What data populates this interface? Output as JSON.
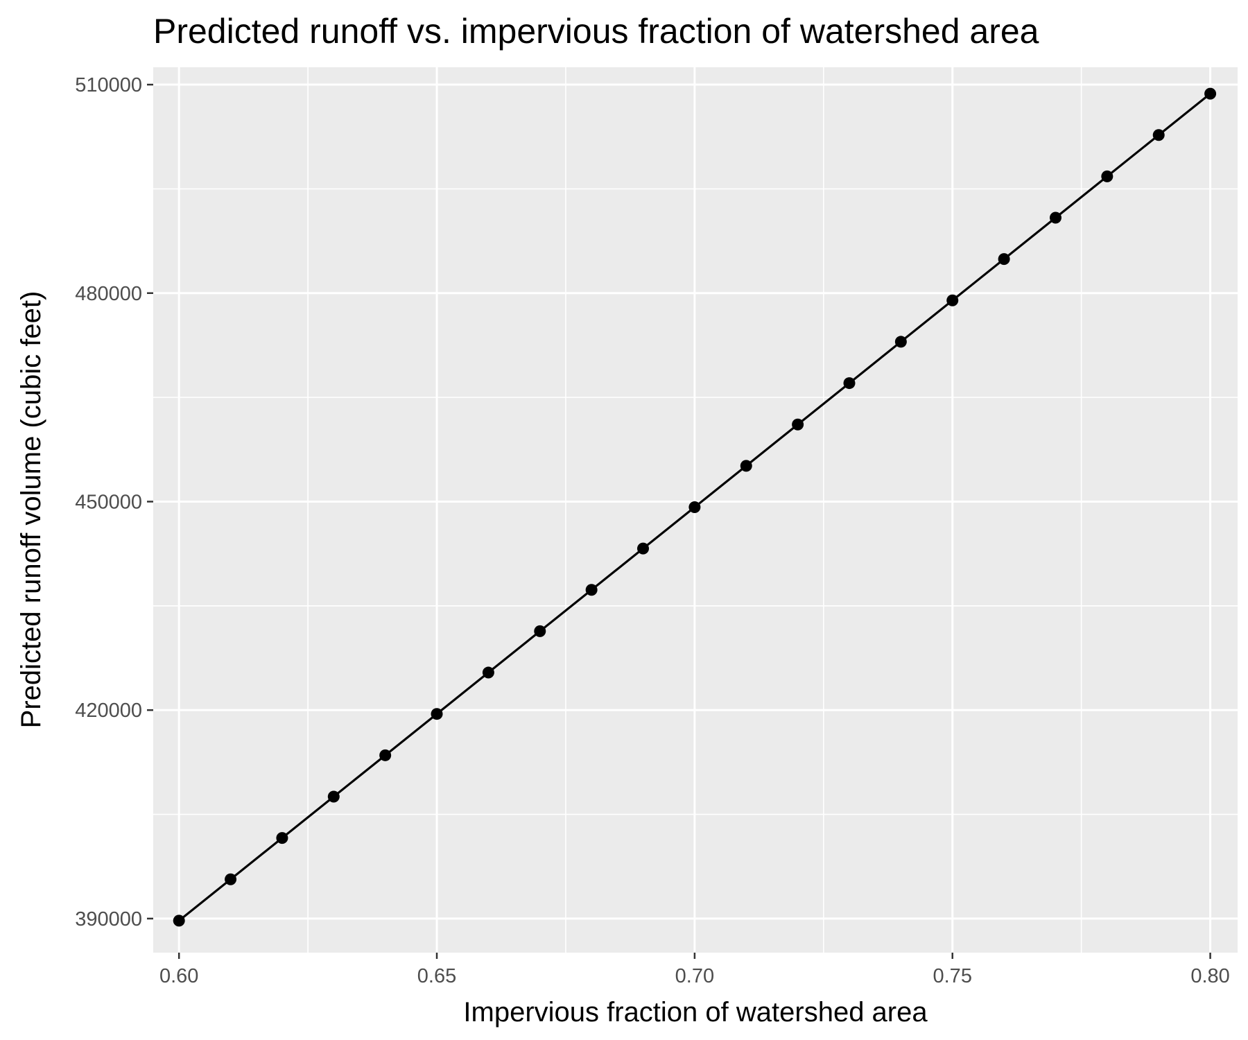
{
  "colors": {
    "panel_background": "#EBEBEB",
    "grid_major": "#FFFFFF",
    "grid_minor": "#FFFFFF",
    "series": "#000000",
    "tick_label": "#4D4D4D",
    "tick_mark": "#333333",
    "text": "#000000"
  },
  "chart_data": {
    "type": "line",
    "title": "Predicted runoff vs. impervious fraction of watershed area",
    "xlabel": "Impervious fraction of watershed area",
    "ylabel": "Predicted runoff volume (cubic feet)",
    "xlim": [
      0.595,
      0.8053
    ],
    "ylim": [
      385100,
      512500
    ],
    "xticks": [
      0.6,
      0.65,
      0.7,
      0.75,
      0.8
    ],
    "xtick_labels": [
      "0.60",
      "0.65",
      "0.70",
      "0.75",
      "0.80"
    ],
    "yticks": [
      390000,
      420000,
      450000,
      480000,
      510000
    ],
    "ytick_labels": [
      "390000",
      "420000",
      "450000",
      "480000",
      "510000"
    ],
    "grid": true,
    "markers": true,
    "legend": "none",
    "series": [
      {
        "x": [
          0.6,
          0.61,
          0.62,
          0.63,
          0.64,
          0.65,
          0.66,
          0.67,
          0.68,
          0.69,
          0.7,
          0.71,
          0.72,
          0.73,
          0.74,
          0.75,
          0.76,
          0.77,
          0.78,
          0.79,
          0.8
        ],
        "y": [
          389700,
          395650,
          401600,
          407550,
          413500,
          419450,
          425400,
          431350,
          437300,
          443250,
          449200,
          455150,
          461100,
          467050,
          473000,
          478950,
          484900,
          490850,
          496800,
          502750,
          508700
        ]
      }
    ]
  }
}
